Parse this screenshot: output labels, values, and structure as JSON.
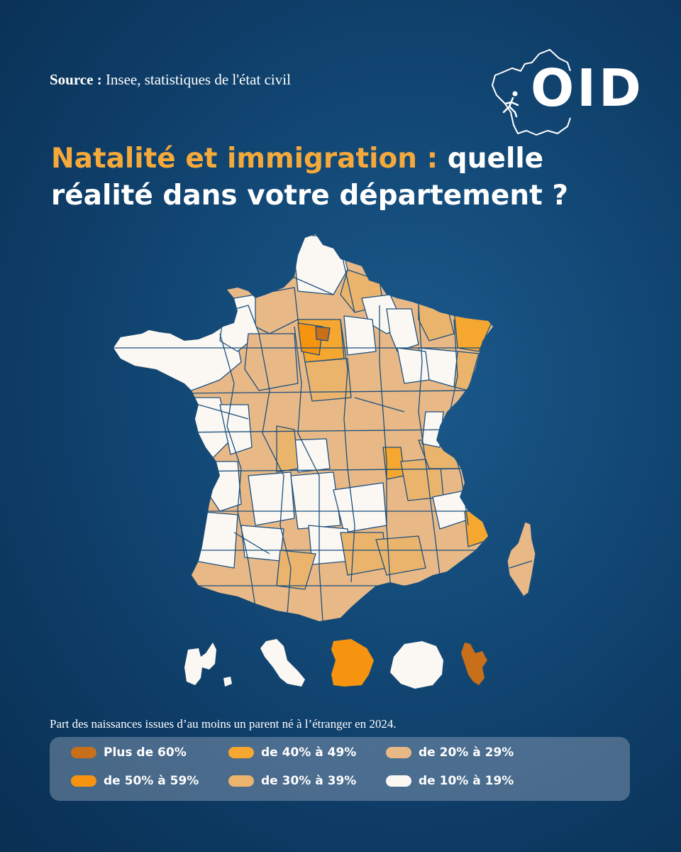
{
  "source": {
    "label": "Source :",
    "text": "Insee, statistiques de l'état civil"
  },
  "logo": {
    "text": "OID"
  },
  "title": {
    "highlight": "Natalité et immigration :",
    "rest_line1": " quelle",
    "line2": "réalité dans votre département ?"
  },
  "caption": "Part des naissances issues d’au moins un parent né à l’étranger en 2024.",
  "legend": [
    {
      "label": "Plus de 60%",
      "color": "#c86f1a"
    },
    {
      "label": "de 50% à 59%",
      "color": "#f7940f"
    },
    {
      "label": "de 40% à 49%",
      "color": "#f6a72f"
    },
    {
      "label": "de 30% à 39%",
      "color": "#ebb46c"
    },
    {
      "label": "de 20% à 29%",
      "color": "#e8b987"
    },
    {
      "label": "de 10% à 19%",
      "color": "#fbf8f3"
    }
  ],
  "colors": {
    "background": "#0f3f6b",
    "accent": "#f5a93a",
    "border": "#1b4f7e"
  },
  "overseas": [
    {
      "name": "Guadeloupe",
      "category": "de 10% à 19%"
    },
    {
      "name": "Martinique",
      "category": "de 10% à 19%"
    },
    {
      "name": "Guyane",
      "category": "de 50% à 59%"
    },
    {
      "name": "La Réunion",
      "category": "de 10% à 19%"
    },
    {
      "name": "Mayotte",
      "category": "Plus de 60%"
    }
  ]
}
